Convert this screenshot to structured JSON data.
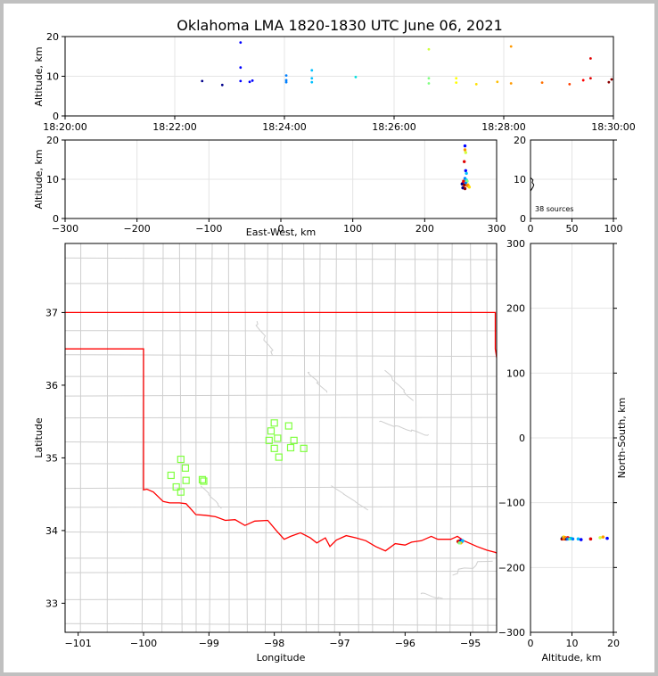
{
  "title": "Oklahoma LMA 1820-1830 UTC June 06, 2021",
  "chart_data": [
    {
      "type": "scatter",
      "panel": "altitude-vs-time",
      "ylabel": "Altitude, km",
      "xlim": [
        "18:20:00",
        "18:30:00"
      ],
      "ylim": [
        0,
        20
      ],
      "xticks": [
        "18:20:00",
        "18:22:00",
        "18:24:00",
        "18:26:00",
        "18:28:00",
        "18:30:00"
      ],
      "yticks": [
        0,
        10,
        20
      ],
      "grid": true,
      "points": [
        {
          "t": "18:22:30",
          "alt": 8.8,
          "color": "#00008b"
        },
        {
          "t": "18:22:52",
          "alt": 7.8,
          "color": "#00008b"
        },
        {
          "t": "18:23:12",
          "alt": 18.5,
          "color": "#0000ff"
        },
        {
          "t": "18:23:12",
          "alt": 12.2,
          "color": "#0000ff"
        },
        {
          "t": "18:23:12",
          "alt": 8.8,
          "color": "#0000ff"
        },
        {
          "t": "18:23:22",
          "alt": 8.6,
          "color": "#0000ff"
        },
        {
          "t": "18:23:25",
          "alt": 8.9,
          "color": "#0000ff"
        },
        {
          "t": "18:24:02",
          "alt": 10.2,
          "color": "#0080ff"
        },
        {
          "t": "18:24:02",
          "alt": 9.0,
          "color": "#0080ff"
        },
        {
          "t": "18:24:02",
          "alt": 8.5,
          "color": "#0080ff"
        },
        {
          "t": "18:24:30",
          "alt": 11.5,
          "color": "#00c0ff"
        },
        {
          "t": "18:24:30",
          "alt": 9.5,
          "color": "#00c0ff"
        },
        {
          "t": "18:24:30",
          "alt": 8.5,
          "color": "#00c0ff"
        },
        {
          "t": "18:25:18",
          "alt": 9.8,
          "color": "#00e0e0"
        },
        {
          "t": "18:26:38",
          "alt": 16.8,
          "color": "#d0ff40"
        },
        {
          "t": "18:26:38",
          "alt": 9.5,
          "color": "#80ff80"
        },
        {
          "t": "18:26:38",
          "alt": 8.2,
          "color": "#80ff80"
        },
        {
          "t": "18:27:08",
          "alt": 9.5,
          "color": "#ffff00"
        },
        {
          "t": "18:27:08",
          "alt": 8.4,
          "color": "#ffff00"
        },
        {
          "t": "18:27:30",
          "alt": 8.0,
          "color": "#ffe000"
        },
        {
          "t": "18:27:53",
          "alt": 8.6,
          "color": "#ffc000"
        },
        {
          "t": "18:28:08",
          "alt": 17.5,
          "color": "#ff9900"
        },
        {
          "t": "18:28:08",
          "alt": 8.2,
          "color": "#ff9900"
        },
        {
          "t": "18:28:42",
          "alt": 8.4,
          "color": "#ff7000"
        },
        {
          "t": "18:29:12",
          "alt": 8.0,
          "color": "#ff4000"
        },
        {
          "t": "18:29:27",
          "alt": 9.0,
          "color": "#ff0000"
        },
        {
          "t": "18:29:35",
          "alt": 14.5,
          "color": "#e00000"
        },
        {
          "t": "18:29:35",
          "alt": 9.5,
          "color": "#e00000"
        },
        {
          "t": "18:29:55",
          "alt": 8.5,
          "color": "#8b0000"
        },
        {
          "t": "18:29:58",
          "alt": 9.2,
          "color": "#8b0000"
        }
      ]
    },
    {
      "type": "scatter",
      "panel": "altitude-vs-east-west",
      "xlabel": "East-West, km",
      "ylabel": "Altitude, km",
      "xlim": [
        -300,
        300
      ],
      "ylim": [
        0,
        20
      ],
      "xticks": [
        -300,
        -200,
        -100,
        0,
        100,
        200,
        300
      ],
      "yticks": [
        0,
        10,
        20
      ],
      "grid": true,
      "points": [
        {
          "x": 256,
          "alt": 18.5,
          "color": "#0000ff"
        },
        {
          "x": 256,
          "alt": 17.5,
          "color": "#ff9900"
        },
        {
          "x": 257,
          "alt": 16.8,
          "color": "#d0ff40"
        },
        {
          "x": 255,
          "alt": 14.5,
          "color": "#e00000"
        },
        {
          "x": 257,
          "alt": 12.2,
          "color": "#0000ff"
        },
        {
          "x": 258,
          "alt": 11.5,
          "color": "#00c0ff"
        },
        {
          "x": 256,
          "alt": 10.2,
          "color": "#0080ff"
        },
        {
          "x": 258,
          "alt": 9.8,
          "color": "#00e0e0"
        },
        {
          "x": 254,
          "alt": 9.5,
          "color": "#e00000"
        },
        {
          "x": 259,
          "alt": 9.5,
          "color": "#80ff80"
        },
        {
          "x": 253,
          "alt": 9.0,
          "color": "#ff0000"
        },
        {
          "x": 257,
          "alt": 9.0,
          "color": "#0080ff"
        },
        {
          "x": 252,
          "alt": 8.8,
          "color": "#00008b"
        },
        {
          "x": 260,
          "alt": 8.6,
          "color": "#ffc000"
        },
        {
          "x": 255,
          "alt": 8.5,
          "color": "#8b0000"
        },
        {
          "x": 259,
          "alt": 8.4,
          "color": "#ff7000"
        },
        {
          "x": 261,
          "alt": 8.2,
          "color": "#ff9900"
        },
        {
          "x": 254,
          "alt": 8.0,
          "color": "#ff4000"
        },
        {
          "x": 262,
          "alt": 8.0,
          "color": "#ffe000"
        },
        {
          "x": 253,
          "alt": 7.8,
          "color": "#00008b"
        },
        {
          "x": 256,
          "alt": 7.6,
          "color": "#8b0000"
        }
      ]
    },
    {
      "type": "histogram",
      "panel": "altitude-histogram",
      "xlim": [
        0,
        100
      ],
      "ylim": [
        0,
        20
      ],
      "xticks": [
        0,
        50,
        100
      ],
      "yticks": [
        0,
        10,
        20
      ],
      "annotation": "38 sources",
      "profile": [
        {
          "alt": 0,
          "count": 0
        },
        {
          "alt": 7,
          "count": 0
        },
        {
          "alt": 8,
          "count": 3
        },
        {
          "alt": 8.6,
          "count": 4
        },
        {
          "alt": 9.2,
          "count": 2
        },
        {
          "alt": 9.8,
          "count": 3
        },
        {
          "alt": 10.4,
          "count": 0
        },
        {
          "alt": 20,
          "count": 0
        }
      ]
    },
    {
      "type": "map",
      "panel": "plan-view",
      "xlabel": "Longitude",
      "ylabel": "Latitude",
      "xlim": [
        -101.2,
        -94.6
      ],
      "ylim": [
        32.6,
        37.95
      ],
      "xticks": [
        -101,
        -100,
        -99,
        -98,
        -97,
        -96,
        -95
      ],
      "yticks": [
        33,
        34,
        35,
        36,
        37
      ],
      "y2label": "North-South, km",
      "y2ticks": [
        -300,
        -200,
        -100,
        0,
        100,
        200,
        300
      ],
      "border_color": "#ff0000",
      "county_color": "#cfcfcf",
      "stations_color": "#80ff40",
      "stations": [
        [
          -98.0,
          35.48
        ],
        [
          -97.78,
          35.44
        ],
        [
          -98.05,
          35.37
        ],
        [
          -97.95,
          35.27
        ],
        [
          -98.08,
          35.24
        ],
        [
          -97.7,
          35.24
        ],
        [
          -98.0,
          35.13
        ],
        [
          -97.75,
          35.14
        ],
        [
          -97.55,
          35.13
        ],
        [
          -97.93,
          35.01
        ],
        [
          -99.43,
          34.98
        ],
        [
          -99.36,
          34.86
        ],
        [
          -99.58,
          34.76
        ],
        [
          -99.35,
          34.69
        ],
        [
          -99.1,
          34.7
        ],
        [
          -99.5,
          34.6
        ],
        [
          -99.43,
          34.53
        ],
        [
          -99.08,
          34.68
        ]
      ],
      "sources": [
        {
          "lon": -95.18,
          "lat": 33.84,
          "color": "#ff0000"
        },
        {
          "lon": -95.16,
          "lat": 33.85,
          "color": "#8b0000"
        },
        {
          "lon": -95.14,
          "lat": 33.84,
          "color": "#ff4000"
        },
        {
          "lon": -95.17,
          "lat": 33.86,
          "color": "#ff9900"
        },
        {
          "lon": -95.15,
          "lat": 33.86,
          "color": "#0000ff"
        },
        {
          "lon": -95.13,
          "lat": 33.85,
          "color": "#0080ff"
        },
        {
          "lon": -95.19,
          "lat": 33.85,
          "color": "#e00000"
        },
        {
          "lon": -95.15,
          "lat": 33.83,
          "color": "#ffc000"
        },
        {
          "lon": -95.12,
          "lat": 33.86,
          "color": "#00c0ff"
        },
        {
          "lon": -95.17,
          "lat": 33.83,
          "color": "#80ff80"
        }
      ]
    },
    {
      "type": "scatter",
      "panel": "north-south-vs-altitude",
      "xlabel": "Altitude, km",
      "ylabel": "North-South, km",
      "xlim": [
        0,
        20
      ],
      "ylim": [
        -300,
        300
      ],
      "xticks": [
        0,
        10,
        20
      ],
      "yticks": [
        -300,
        -200,
        -100,
        0,
        100,
        200,
        300
      ],
      "grid": true,
      "points": [
        {
          "alt": 7.6,
          "y": -156,
          "color": "#8b0000"
        },
        {
          "alt": 7.8,
          "y": -154,
          "color": "#00008b"
        },
        {
          "alt": 8.0,
          "y": -156,
          "color": "#ff4000"
        },
        {
          "alt": 8.0,
          "y": -153,
          "color": "#ffe000"
        },
        {
          "alt": 8.2,
          "y": -155,
          "color": "#ff9900"
        },
        {
          "alt": 8.4,
          "y": -154,
          "color": "#ff7000"
        },
        {
          "alt": 8.5,
          "y": -156,
          "color": "#8b0000"
        },
        {
          "alt": 8.6,
          "y": -155,
          "color": "#ffc000"
        },
        {
          "alt": 8.8,
          "y": -156,
          "color": "#00008b"
        },
        {
          "alt": 9.0,
          "y": -154,
          "color": "#ff0000"
        },
        {
          "alt": 9.0,
          "y": -156,
          "color": "#0080ff"
        },
        {
          "alt": 9.5,
          "y": -155,
          "color": "#e00000"
        },
        {
          "alt": 9.5,
          "y": -156,
          "color": "#80ff80"
        },
        {
          "alt": 9.8,
          "y": -155,
          "color": "#00e0e0"
        },
        {
          "alt": 10.2,
          "y": -156,
          "color": "#0080ff"
        },
        {
          "alt": 11.5,
          "y": -156,
          "color": "#00c0ff"
        },
        {
          "alt": 12.2,
          "y": -157,
          "color": "#0000ff"
        },
        {
          "alt": 14.5,
          "y": -156,
          "color": "#e00000"
        },
        {
          "alt": 16.8,
          "y": -154,
          "color": "#d0ff40"
        },
        {
          "alt": 17.5,
          "y": -153,
          "color": "#ff9900"
        },
        {
          "alt": 18.5,
          "y": -155,
          "color": "#0000ff"
        }
      ]
    }
  ]
}
